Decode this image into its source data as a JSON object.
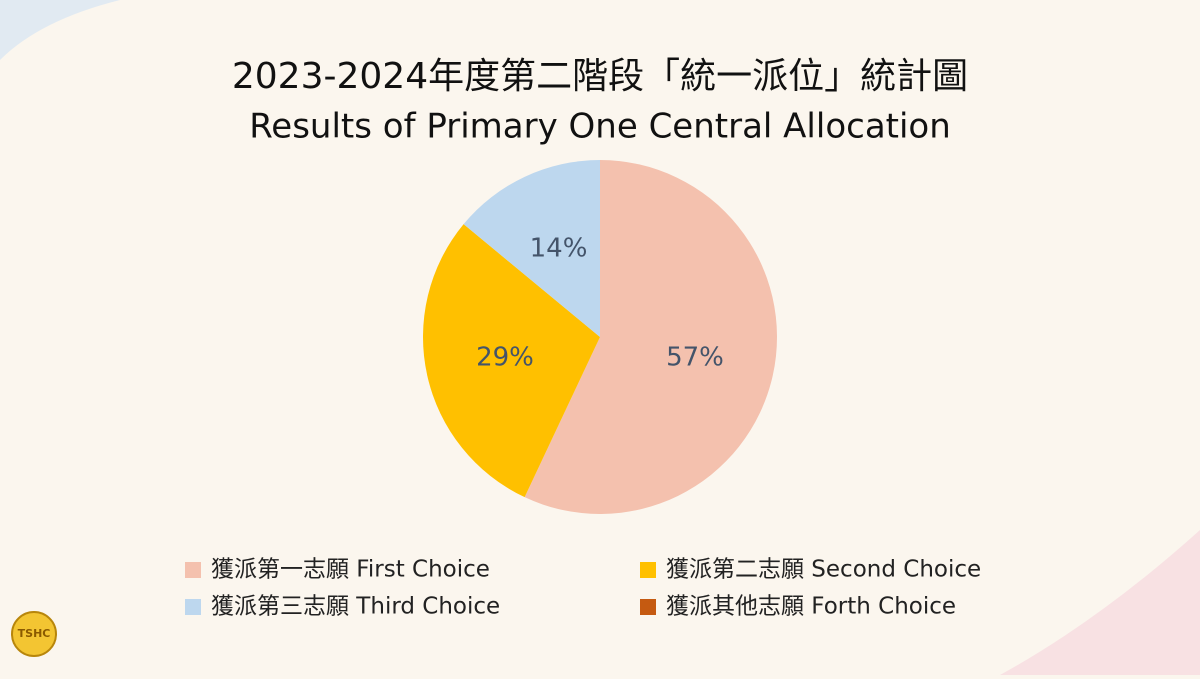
{
  "chart_data": {
    "type": "pie",
    "title": "2023-2024年度第二階段「統一派位」統計圖",
    "subtitle": "Results of Primary One Central Allocation",
    "categories": [
      "獲派第一志願 First Choice",
      "獲派第二志願 Second Choice",
      "獲派第三志願 Third Choice",
      "獲派其他志願 Forth Choice"
    ],
    "values": [
      57,
      29,
      14,
      0
    ],
    "value_labels": [
      "57%",
      "29%",
      "14%",
      null
    ],
    "colors": [
      "#f4c1ae",
      "#ffc000",
      "#bdd7ee",
      "#c55a11"
    ]
  },
  "logo": {
    "text": "TSHC"
  }
}
